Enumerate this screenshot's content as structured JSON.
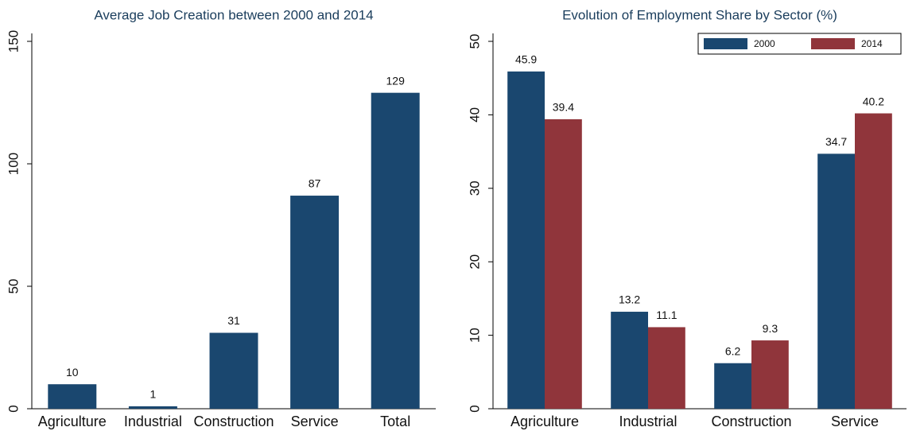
{
  "chart_data": [
    {
      "type": "bar",
      "title": "Average Job Creation between 2000 and 2014",
      "categories": [
        "Agriculture",
        "Industrial",
        "Construction",
        "Service",
        "Total"
      ],
      "values": [
        10,
        1,
        31,
        87,
        129
      ],
      "color": "#1a476f",
      "ylim": [
        0,
        150
      ],
      "yticks": [
        0,
        50,
        100,
        150
      ]
    },
    {
      "type": "bar",
      "title": "Evolution of Employment Share by Sector (%)",
      "categories": [
        "Agriculture",
        "Industrial",
        "Construction",
        "Service"
      ],
      "series": [
        {
          "name": "2000",
          "color": "#1a476f",
          "values": [
            45.9,
            13.2,
            6.2,
            34.7
          ]
        },
        {
          "name": "2014",
          "color": "#90353b",
          "values": [
            39.4,
            11.1,
            9.3,
            40.2
          ]
        }
      ],
      "ylim": [
        0,
        50
      ],
      "yticks": [
        0,
        10,
        20,
        30,
        40,
        50
      ],
      "legend": "top-right"
    }
  ]
}
